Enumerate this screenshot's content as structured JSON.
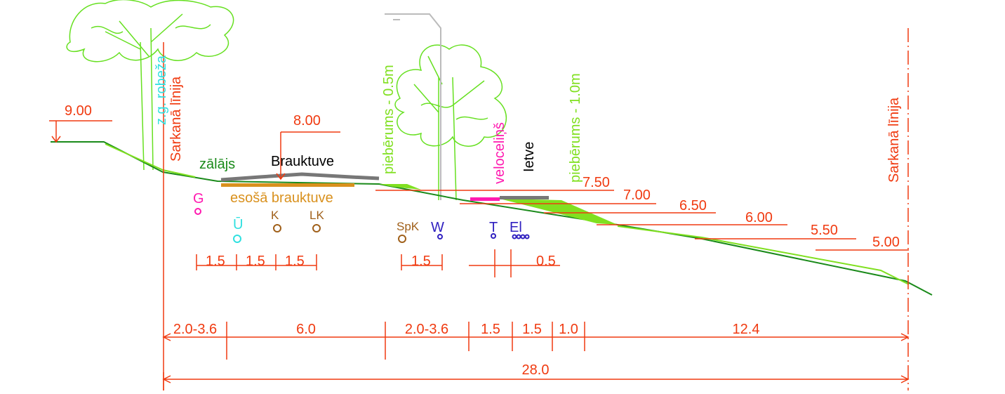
{
  "elevations": [
    "9.00",
    "8.00",
    "7.50",
    "7.00",
    "6.50",
    "6.00",
    "5.50",
    "5.00"
  ],
  "vertical_labels": {
    "zg_robeza": "z.g. robeža",
    "red_line_left": "Sarkanā līnija",
    "red_line_right": "Sarkanā līnija",
    "pieberums_05": "piebērums - 0.5m",
    "velocelins": "veloceliņš",
    "pieberums_10": "piebērums - 1.0m"
  },
  "surface_labels": {
    "zalajs": "zālājs",
    "brauktuve": "Brauktuve",
    "esosa_brauktuve": "esošā brauktuve",
    "ietve": "Ietve"
  },
  "utilities": [
    "G",
    "Ū",
    "K",
    "LK",
    "SpK",
    "W",
    "T",
    "El"
  ],
  "upper_dimensions": [
    "1.5",
    "1.5",
    "1.5",
    "1.5",
    "0.5"
  ],
  "lower_dimensions": [
    "2.0-3.6",
    "6.0",
    "2.0-3.6",
    "1.5",
    "1.5",
    "1.0",
    "12.4"
  ],
  "total_dimension": "28.0"
}
